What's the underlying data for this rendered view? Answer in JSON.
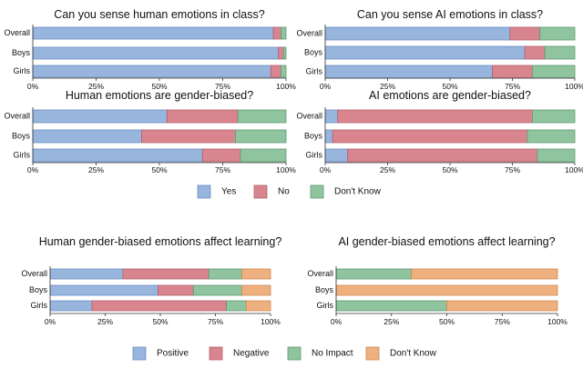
{
  "colors": {
    "Yes": "#97b5dd",
    "No": "#d9858f",
    "Don't Know": "#8fc49f",
    "Positive": "#97b5dd",
    "Negative": "#d9858f",
    "No Impact": "#8fc49f",
    "Don't Know 4": "#efb07f",
    "edge_blue": "#6b8fc4",
    "edge_red": "#b5606b",
    "edge_green": "#5e9a70",
    "edge_orange": "#cf8a52"
  },
  "legend_top": [
    "Yes",
    "No",
    "Don't Know"
  ],
  "legend_bottom": [
    "Positive",
    "Negative",
    "No Impact",
    "Don't Know"
  ],
  "chart_data": [
    {
      "type": "bar",
      "orientation": "horizontal-stacked",
      "title": "Can you sense human emotions in class?",
      "categories": [
        "Overall",
        "Boys",
        "Girls"
      ],
      "series": [
        {
          "name": "Yes",
          "values": [
            95,
            97,
            94
          ]
        },
        {
          "name": "No",
          "values": [
            3,
            2,
            4
          ]
        },
        {
          "name": "Don't Know",
          "values": [
            2,
            1,
            2
          ]
        }
      ],
      "xlim": [
        0,
        100
      ],
      "ticks": [
        "0%",
        "25%",
        "50%",
        "75%",
        "100%"
      ]
    },
    {
      "type": "bar",
      "orientation": "horizontal-stacked",
      "title": "Can you sense AI emotions in class?",
      "categories": [
        "Overall",
        "Boys",
        "Girls"
      ],
      "series": [
        {
          "name": "Yes",
          "values": [
            74,
            80,
            67
          ]
        },
        {
          "name": "No",
          "values": [
            12,
            8,
            16
          ]
        },
        {
          "name": "Don't Know",
          "values": [
            14,
            12,
            17
          ]
        }
      ],
      "xlim": [
        0,
        100
      ],
      "ticks": [
        "0%",
        "25%",
        "50%",
        "75%",
        "100%"
      ]
    },
    {
      "type": "bar",
      "orientation": "horizontal-stacked",
      "title": "Human emotions are gender-biased?",
      "categories": [
        "Overall",
        "Boys",
        "Girls"
      ],
      "series": [
        {
          "name": "Yes",
          "values": [
            53,
            43,
            67
          ]
        },
        {
          "name": "No",
          "values": [
            28,
            37,
            15
          ]
        },
        {
          "name": "Don't Know",
          "values": [
            19,
            20,
            18
          ]
        }
      ],
      "xlim": [
        0,
        100
      ],
      "ticks": [
        "0%",
        "25%",
        "50%",
        "75%",
        "100%"
      ]
    },
    {
      "type": "bar",
      "orientation": "horizontal-stacked",
      "title": "AI emotions are gender-biased?",
      "categories": [
        "Overall",
        "Boys",
        "Girls"
      ],
      "series": [
        {
          "name": "Yes",
          "values": [
            5,
            3,
            9
          ]
        },
        {
          "name": "No",
          "values": [
            78,
            78,
            76
          ]
        },
        {
          "name": "Don't Know",
          "values": [
            17,
            19,
            15
          ]
        }
      ],
      "xlim": [
        0,
        100
      ],
      "ticks": [
        "0%",
        "25%",
        "50%",
        "75%",
        "100%"
      ]
    },
    {
      "type": "bar",
      "orientation": "horizontal-stacked",
      "title": "Human gender-biased emotions affect learning?",
      "categories": [
        "Overall",
        "Boys",
        "Girls"
      ],
      "series": [
        {
          "name": "Positive",
          "values": [
            33,
            49,
            19
          ]
        },
        {
          "name": "Negative",
          "values": [
            39,
            16,
            61
          ]
        },
        {
          "name": "No Impact",
          "values": [
            15,
            22,
            9
          ]
        },
        {
          "name": "Don't Know",
          "values": [
            13,
            13,
            11
          ]
        }
      ],
      "xlim": [
        0,
        100
      ],
      "ticks": [
        "0%",
        "25%",
        "50%",
        "75%",
        "100%"
      ]
    },
    {
      "type": "bar",
      "orientation": "horizontal-stacked",
      "title": "AI gender-biased emotions affect learning?",
      "categories": [
        "Overall",
        "Boys",
        "Girls"
      ],
      "series": [
        {
          "name": "Positive",
          "values": [
            0,
            0,
            0
          ]
        },
        {
          "name": "Negative",
          "values": [
            0,
            0,
            0
          ]
        },
        {
          "name": "No Impact",
          "values": [
            34,
            0,
            50
          ]
        },
        {
          "name": "Don't Know",
          "values": [
            66,
            100,
            50
          ]
        }
      ],
      "xlim": [
        0,
        100
      ],
      "ticks": [
        "0%",
        "25%",
        "50%",
        "75%",
        "100%"
      ]
    }
  ]
}
